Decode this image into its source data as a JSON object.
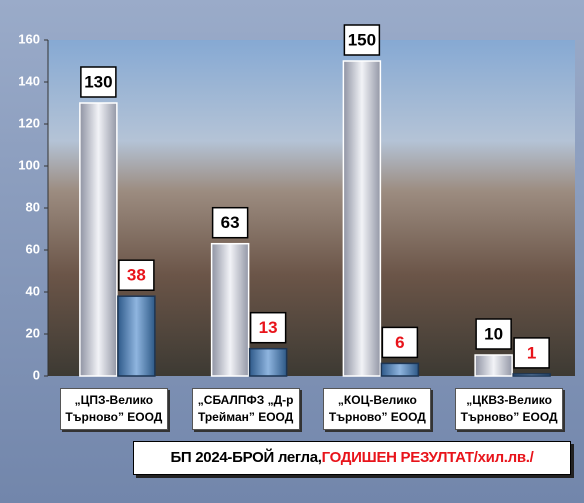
{
  "chart_data": {
    "type": "bar",
    "categories": [
      "„ЦПЗ-Велико\nТърново” ЕООД",
      "„СБАЛПФЗ „Д-р\nТрейман” ЕООД",
      "„КОЦ-Велико\nТърново” ЕООД",
      "„ЦКВЗ-Велико\nТърново” ЕООД"
    ],
    "series": [
      {
        "name": "БП 2024-БРОЙ легла,",
        "color": "#c9ccd6",
        "label_color": "#000000",
        "values": [
          130,
          63,
          150,
          10
        ]
      },
      {
        "name": "ГОДИШЕН РЕЗУЛТАТ/хил.лв./",
        "color": "#4f7fb3",
        "label_color": "#e8141b",
        "values": [
          38,
          13,
          6,
          1
        ]
      }
    ],
    "ylim": [
      0,
      160
    ],
    "yticks": [
      0,
      20,
      40,
      60,
      80,
      100,
      120,
      140,
      160
    ],
    "grid": false
  }
}
